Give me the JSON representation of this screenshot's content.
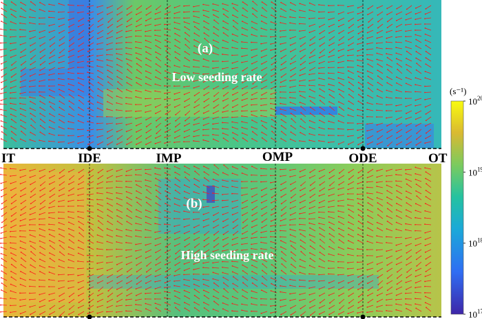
{
  "panels": [
    {
      "tag": "(a)",
      "title": "Low seeding rate"
    },
    {
      "tag": "(b)",
      "title": "High seeding rate"
    }
  ],
  "positions": [
    "IT",
    "IDE",
    "IMP",
    "OMP",
    "ODE",
    "OT"
  ],
  "colorbar": {
    "unit": "(s⁻¹)",
    "ticks": [
      "10",
      "10",
      "10",
      "10"
    ],
    "exponents": [
      "20",
      "19",
      "18",
      "17"
    ],
    "scale": "log",
    "range": [
      1e+17,
      1e+20
    ],
    "colormap": [
      "#3e26a8",
      "#2f6ef3",
      "#1ba9d8",
      "#25c2a0",
      "#7bcb5e",
      "#d9b932",
      "#f9fb0e"
    ]
  },
  "colors": {
    "arrow": "#ff1a1a",
    "separator": "#000000"
  }
}
